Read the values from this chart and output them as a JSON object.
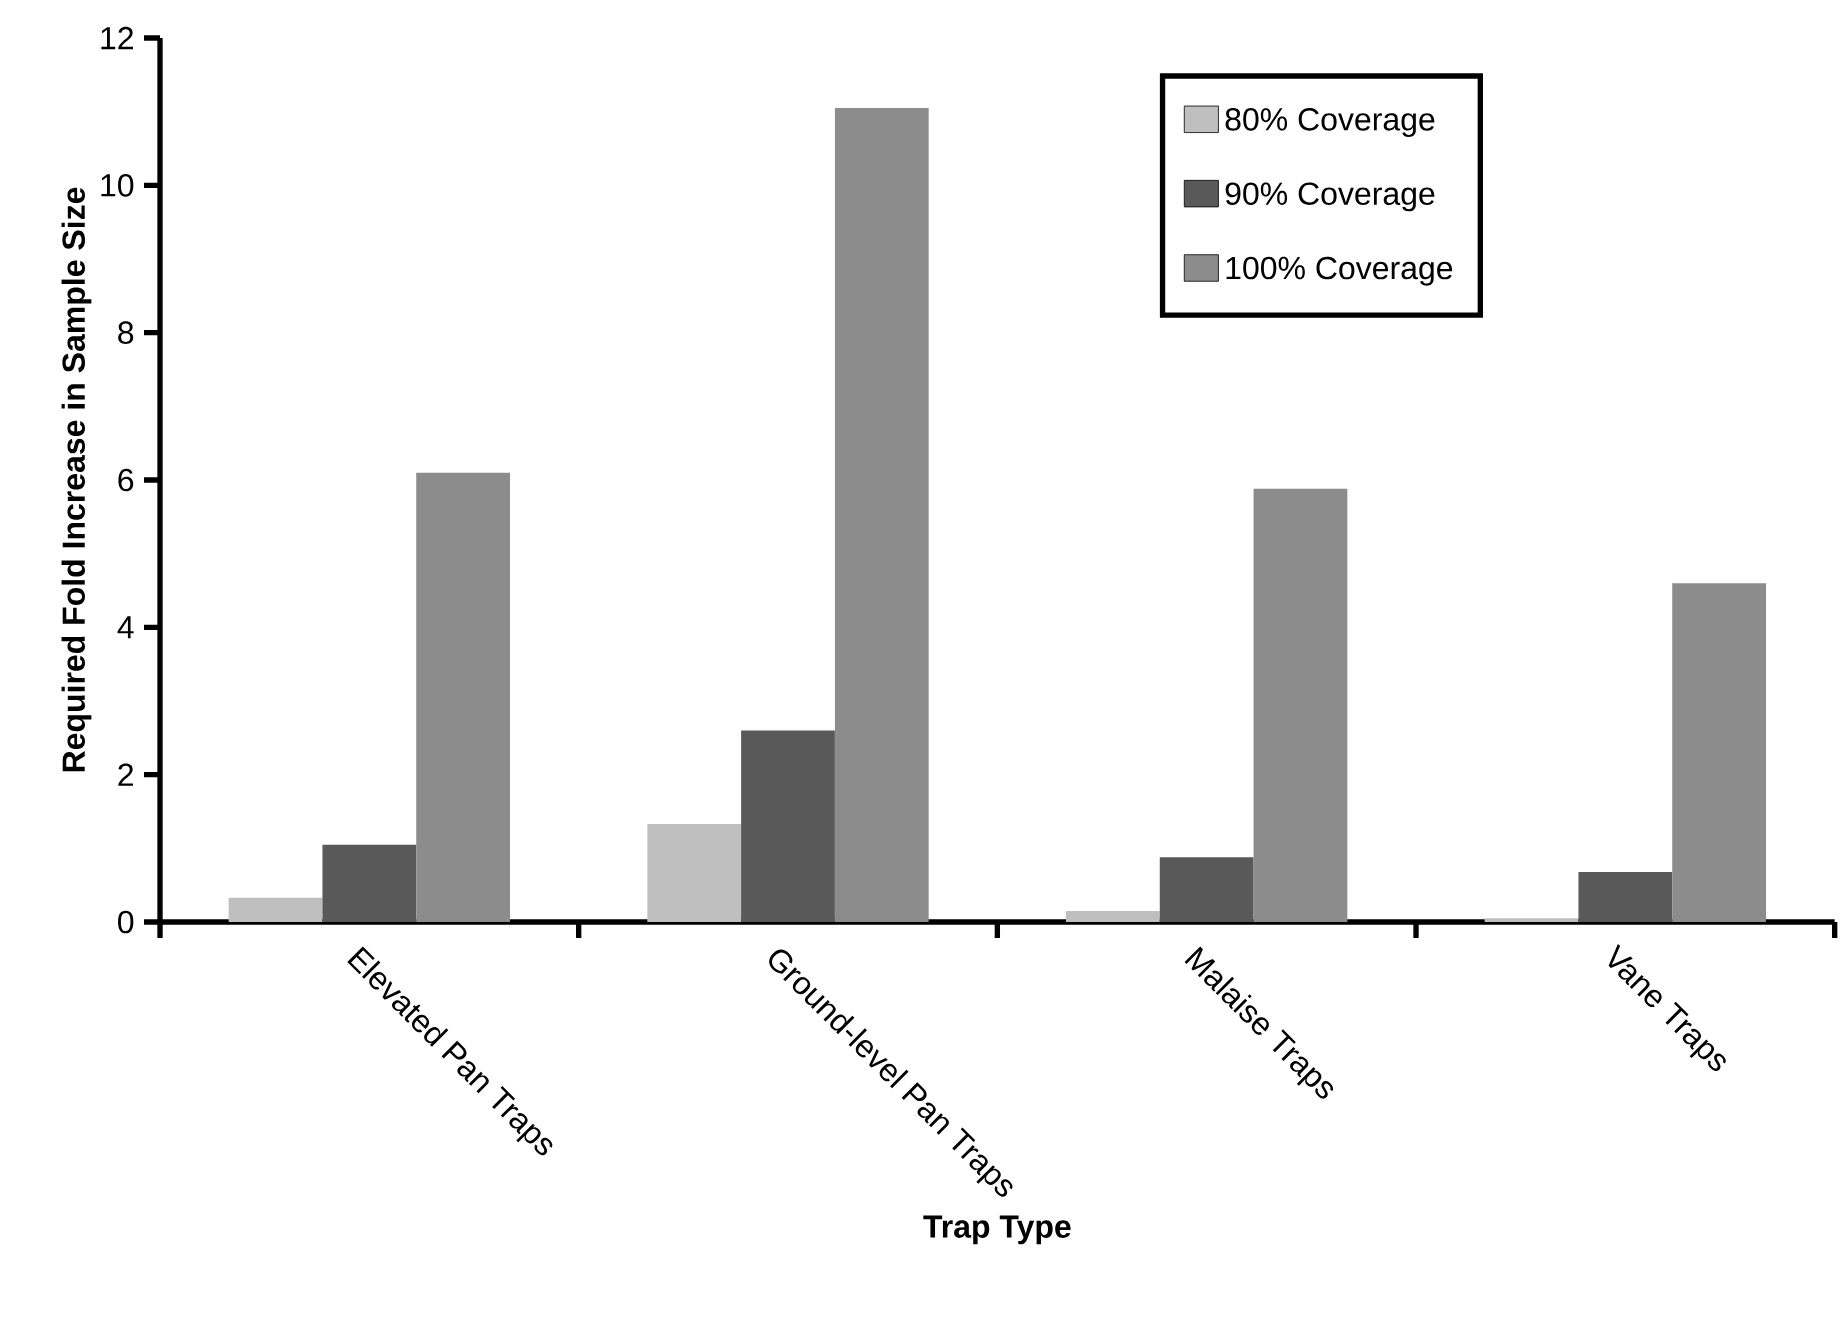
{
  "chart_data": {
    "type": "bar",
    "xlabel": "Trap Type",
    "ylabel": "Required Fold Increase in Sample Size",
    "categories": [
      "Elevated Pan Traps",
      "Ground-level Pan Traps",
      "Malaise Traps",
      "Vane Traps"
    ],
    "series": [
      {
        "name": "80% Coverage",
        "color": "#bfbfbf",
        "values": [
          0.33,
          1.33,
          0.15,
          0.05
        ]
      },
      {
        "name": "90% Coverage",
        "color": "#595959",
        "values": [
          1.05,
          2.6,
          0.88,
          0.68
        ]
      },
      {
        "name": "100% Coverage",
        "color": "#8c8c8c",
        "values": [
          6.1,
          11.05,
          5.88,
          4.6
        ]
      }
    ],
    "ylim": [
      0,
      12
    ],
    "yticks": [
      0,
      2,
      4,
      6,
      8,
      10,
      12
    ],
    "legend": "top right",
    "grid": false
  }
}
